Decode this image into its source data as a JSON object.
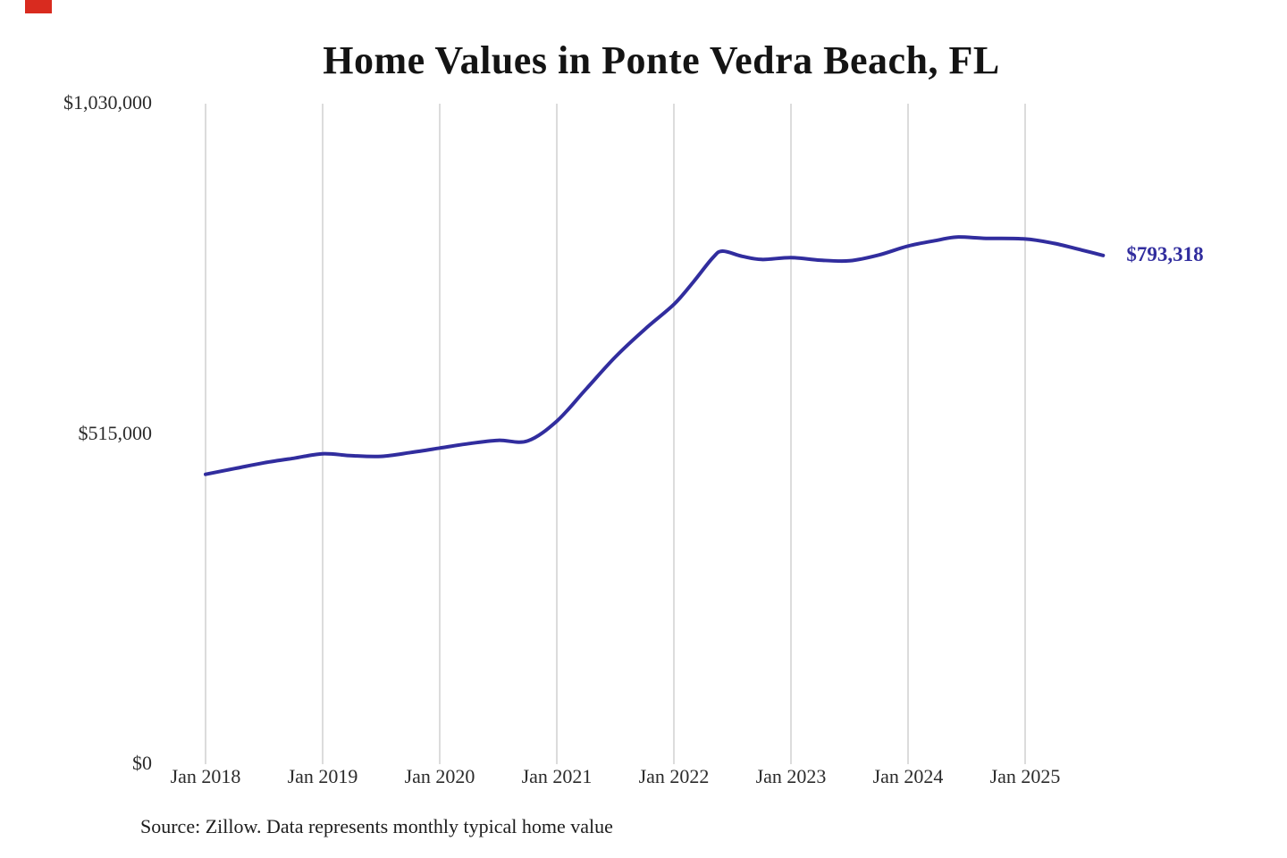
{
  "chart_data": {
    "type": "line",
    "title": "Home Values in Ponte Vedra Beach, FL",
    "end_label": "$793,318",
    "source_note": "Source: Zillow. Data represents monthly typical home value",
    "line_color": "#312d9e",
    "grid_color": "#c9c9c9",
    "label_color": "#2b2b2b",
    "xlabel": "",
    "ylabel": "",
    "ylim": [
      0,
      1030000
    ],
    "legend": "none",
    "grid": "vertical-only",
    "y_ticks": [
      {
        "label": "$0",
        "value": 0
      },
      {
        "label": "$515,000",
        "value": 515000
      },
      {
        "label": "$1,030,000",
        "value": 1030000
      }
    ],
    "x_ticks": [
      {
        "label": "Jan 2018",
        "month": 0
      },
      {
        "label": "Jan 2019",
        "month": 12
      },
      {
        "label": "Jan 2020",
        "month": 24
      },
      {
        "label": "Jan 2021",
        "month": 36
      },
      {
        "label": "Jan 2022",
        "month": 48
      },
      {
        "label": "Jan 2023",
        "month": 60
      },
      {
        "label": "Jan 2024",
        "month": 72
      },
      {
        "label": "Jan 2025",
        "month": 84
      }
    ],
    "series": [
      {
        "name": "Monthly typical home value",
        "points": [
          {
            "date": "2018-01",
            "value": 452000
          },
          {
            "date": "2018-04",
            "value": 461000
          },
          {
            "date": "2018-07",
            "value": 470000
          },
          {
            "date": "2018-10",
            "value": 477000
          },
          {
            "date": "2019-01",
            "value": 484000
          },
          {
            "date": "2019-04",
            "value": 481000
          },
          {
            "date": "2019-07",
            "value": 480000
          },
          {
            "date": "2019-10",
            "value": 486000
          },
          {
            "date": "2020-01",
            "value": 493000
          },
          {
            "date": "2020-04",
            "value": 500000
          },
          {
            "date": "2020-07",
            "value": 505000
          },
          {
            "date": "2020-10",
            "value": 504000
          },
          {
            "date": "2021-01",
            "value": 535000
          },
          {
            "date": "2021-04",
            "value": 585000
          },
          {
            "date": "2021-07",
            "value": 635000
          },
          {
            "date": "2021-10",
            "value": 678000
          },
          {
            "date": "2022-01",
            "value": 717000
          },
          {
            "date": "2022-03",
            "value": 752000
          },
          {
            "date": "2022-05",
            "value": 790000
          },
          {
            "date": "2022-06",
            "value": 800000
          },
          {
            "date": "2022-08",
            "value": 792000
          },
          {
            "date": "2022-10",
            "value": 787000
          },
          {
            "date": "2023-01",
            "value": 790000
          },
          {
            "date": "2023-04",
            "value": 786000
          },
          {
            "date": "2023-07",
            "value": 785000
          },
          {
            "date": "2023-10",
            "value": 794000
          },
          {
            "date": "2024-01",
            "value": 808000
          },
          {
            "date": "2024-04",
            "value": 817000
          },
          {
            "date": "2024-06",
            "value": 822000
          },
          {
            "date": "2024-09",
            "value": 820000
          },
          {
            "date": "2025-01",
            "value": 819000
          },
          {
            "date": "2025-04",
            "value": 812000
          },
          {
            "date": "2025-07",
            "value": 801000
          },
          {
            "date": "2025-09",
            "value": 793318
          }
        ]
      }
    ]
  }
}
